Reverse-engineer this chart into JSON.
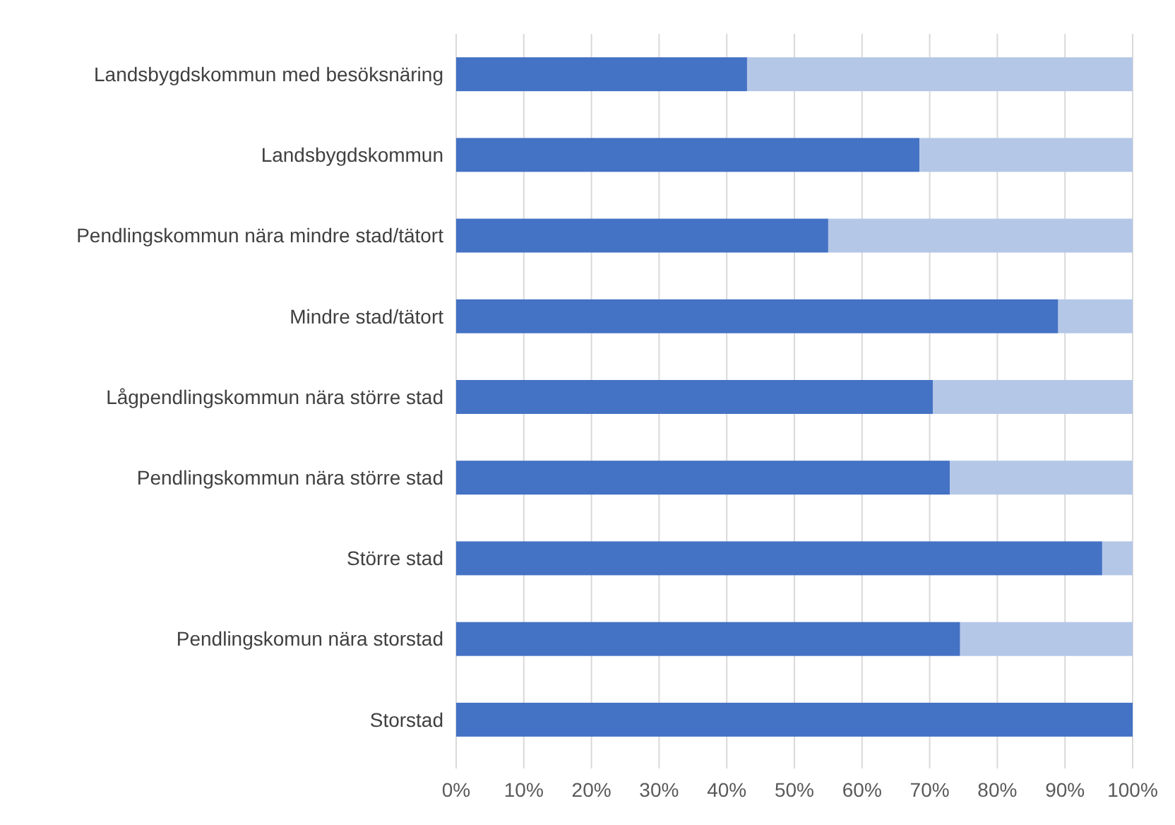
{
  "chart_data": {
    "type": "bar",
    "orientation": "horizontal",
    "stacked": true,
    "categories": [
      "Landsbygdskommun med besöksnäring",
      "Landsbygdskommun",
      "Pendlingskommun nära mindre stad/tätort",
      "Mindre stad/tätort",
      "Lågpendlingskommun nära större stad",
      "Pendlingskommun nära större stad",
      "Större stad",
      "Pendlingskomun nära storstad",
      "Storstad"
    ],
    "series": [
      {
        "color": "#4472c4",
        "values": [
          43,
          68.5,
          55,
          89,
          70.5,
          73,
          95.5,
          74.5,
          100
        ]
      },
      {
        "color": "#b4c7e7",
        "values": [
          57,
          31.5,
          45,
          11,
          29.5,
          27,
          4.5,
          25.5,
          0
        ]
      }
    ],
    "xlim": [
      0,
      100
    ],
    "xticks": [
      {
        "value": 0,
        "label": "0%"
      },
      {
        "value": 10,
        "label": "10%"
      },
      {
        "value": 20,
        "label": "20%"
      },
      {
        "value": 30,
        "label": "30%"
      },
      {
        "value": 40,
        "label": "40%"
      },
      {
        "value": 50,
        "label": "50%"
      },
      {
        "value": 60,
        "label": "60%"
      },
      {
        "value": 70,
        "label": "70%"
      },
      {
        "value": 80,
        "label": "80%"
      },
      {
        "value": 90,
        "label": "90%"
      },
      {
        "value": 100,
        "label": "100%"
      }
    ],
    "grid": "x"
  }
}
